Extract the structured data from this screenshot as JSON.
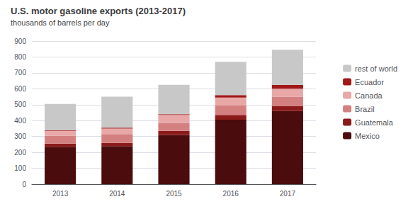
{
  "chart_data": {
    "type": "bar",
    "title": "U.S. motor gasoline exports (2013-2017)",
    "subtitle": "thousands of barrels per day",
    "categories": [
      "2013",
      "2014",
      "2015",
      "2016",
      "2017"
    ],
    "series": [
      {
        "name": "Mexico",
        "color": "#4a0c0c",
        "values": [
          235,
          240,
          310,
          405,
          460
        ]
      },
      {
        "name": "Guatemala",
        "color": "#8b1a1a",
        "values": [
          20,
          20,
          25,
          30,
          30
        ]
      },
      {
        "name": "Brazil",
        "color": "#d48080",
        "values": [
          50,
          55,
          50,
          60,
          60
        ]
      },
      {
        "name": "Canada",
        "color": "#e8a8a8",
        "values": [
          30,
          35,
          50,
          50,
          50
        ]
      },
      {
        "name": "Ecuador",
        "color": "#a01818",
        "values": [
          5,
          5,
          5,
          15,
          25
        ]
      },
      {
        "name": "rest of world",
        "color": "#c8c8c8",
        "values": [
          165,
          195,
          185,
          210,
          220
        ]
      }
    ],
    "stacked": true,
    "ylim": [
      0,
      900
    ],
    "yticks": [
      0,
      100,
      200,
      300,
      400,
      500,
      600,
      700,
      800,
      900
    ],
    "grid": true,
    "legend": "right"
  }
}
